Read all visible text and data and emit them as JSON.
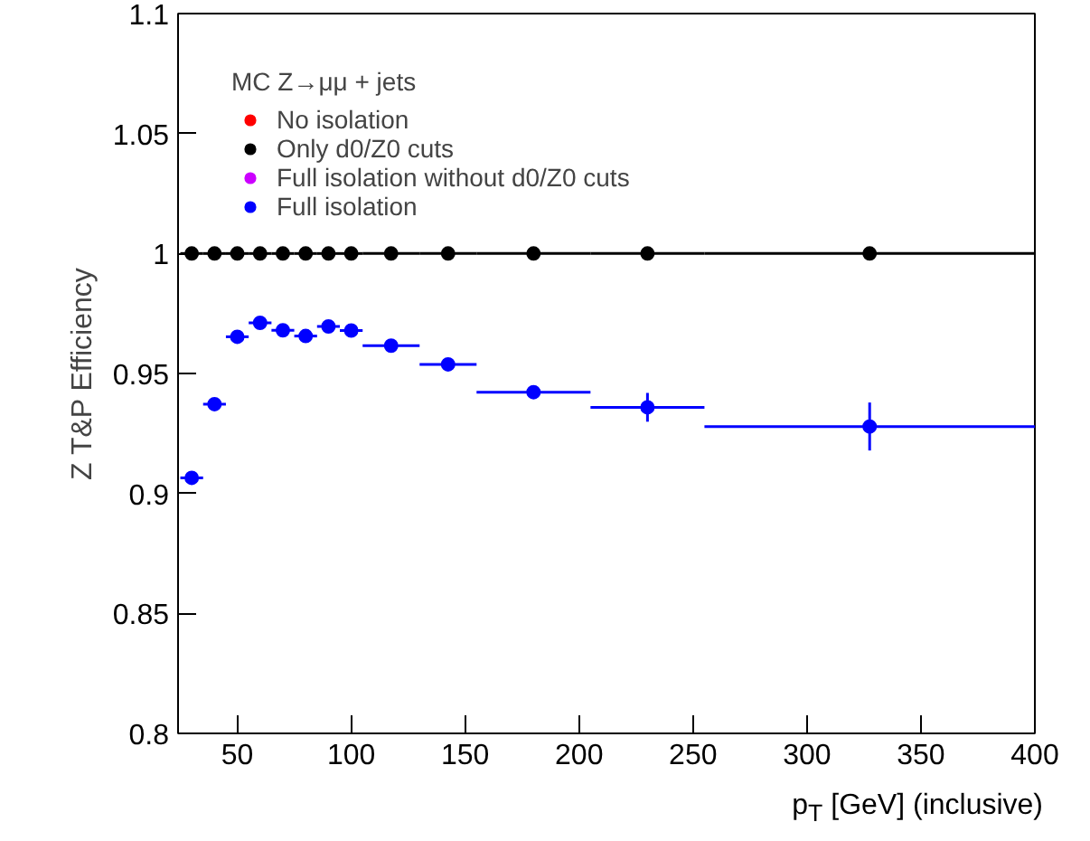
{
  "chart_data": {
    "type": "scatter",
    "xlabel": "p$_{T}$ [GeV] (inclusive)",
    "ylabel": "Z T&P Efficiency",
    "legend_title": "MC Z→μμ + jets",
    "x": [
      30,
      40,
      50,
      60,
      70,
      80,
      90,
      100,
      117.5,
      142.5,
      180,
      230,
      327.5
    ],
    "series": [
      {
        "name": "No isolation",
        "color": "#ff0000",
        "values": [
          null,
          null,
          null,
          null,
          null,
          null,
          null,
          null,
          null,
          null,
          null,
          null,
          null
        ]
      },
      {
        "name": "Only d0/Z0 cuts",
        "color": "#000000",
        "values": [
          1,
          1,
          1,
          1,
          1,
          1,
          1,
          1,
          1,
          1,
          1,
          1,
          1
        ],
        "xerrors": [
          [
            25,
            35
          ],
          [
            35,
            45
          ],
          [
            45,
            55
          ],
          [
            55,
            65
          ],
          [
            65,
            75
          ],
          [
            75,
            85
          ],
          [
            85,
            95
          ],
          [
            95,
            105
          ],
          [
            105,
            130
          ],
          [
            130,
            155
          ],
          [
            155,
            205
          ],
          [
            205,
            255
          ],
          [
            255,
            400
          ]
        ]
      },
      {
        "name": "Full isolation without d0/Z0 cuts",
        "color": "#cc00ff",
        "values": [
          null,
          null,
          null,
          null,
          null,
          null,
          null,
          null,
          null,
          null,
          null,
          null,
          null
        ]
      },
      {
        "name": "Full isolation",
        "color": "#0000ff",
        "values": [
          0.9065,
          0.9372,
          0.9653,
          0.9711,
          0.968,
          0.9656,
          0.9696,
          0.9679,
          0.9616,
          0.9538,
          0.9422,
          0.9359,
          0.9279
        ],
        "xerrors": [
          [
            25,
            35
          ],
          [
            35,
            45
          ],
          [
            45,
            55
          ],
          [
            55,
            65
          ],
          [
            65,
            75
          ],
          [
            75,
            85
          ],
          [
            85,
            95
          ],
          [
            95,
            105
          ],
          [
            105,
            130
          ],
          [
            130,
            155
          ],
          [
            155,
            205
          ],
          [
            205,
            255
          ],
          [
            255,
            400
          ]
        ],
        "errors": [
          null,
          null,
          null,
          null,
          null,
          null,
          null,
          null,
          null,
          null,
          null,
          0.006,
          0.01
        ]
      }
    ],
    "xlim": [
      24,
      400
    ],
    "ylim": [
      0.8,
      1.1
    ],
    "xticks": [
      50,
      100,
      150,
      200,
      250,
      300,
      350,
      400
    ],
    "yticks": [
      0.8,
      0.85,
      0.9,
      0.95,
      1,
      1.05,
      1.1
    ],
    "marker": "circle",
    "legend": "top left",
    "grid": false
  }
}
